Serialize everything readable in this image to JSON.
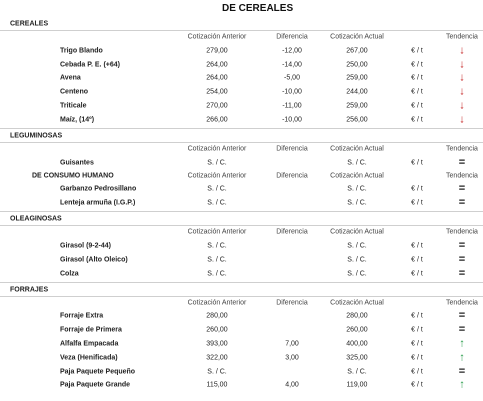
{
  "title": "DE CEREALES",
  "columns": [
    "Cotización Anterior",
    "Diferencia",
    "Cotización Actual",
    "Tendencia"
  ],
  "trend_colors": {
    "↓": "#c62828",
    "↑": "#2e9e4f",
    "=": "#222222"
  },
  "blocks": [
    {
      "title": "CEREALES",
      "rows": [
        [
          "Trigo Blando",
          "279,00",
          "-12,00",
          "267,00",
          "€ / t",
          "↓"
        ],
        [
          "Cebada P. E. (+64)",
          "264,00",
          "-14,00",
          "250,00",
          "€ / t",
          "↓"
        ],
        [
          "Avena",
          "264,00",
          "-5,00",
          "259,00",
          "€ / t",
          "↓"
        ],
        [
          "Centeno",
          "254,00",
          "-10,00",
          "244,00",
          "€ / t",
          "↓"
        ],
        [
          "Triticale",
          "270,00",
          "-11,00",
          "259,00",
          "€ / t",
          "↓"
        ],
        [
          "Maíz, (14º)",
          "266,00",
          "-10,00",
          "256,00",
          "€ / t",
          "↓"
        ]
      ]
    },
    {
      "title": "LEGUMINOSAS",
      "rows": [
        [
          "Guisantes",
          "S. / C.",
          null,
          "S. / C.",
          "€ / t",
          "="
        ]
      ]
    },
    {
      "label": "DE CONSUMO HUMANO",
      "rows": [
        [
          "Garbanzo Pedrosillano",
          "S. / C.",
          null,
          "S. / C.",
          "€ / t",
          "="
        ],
        [
          "Lenteja armuña (I.G.P.)",
          "S. / C.",
          null,
          "S. / C.",
          "€ / t",
          "="
        ]
      ]
    },
    {
      "title": "OLEAGINOSAS",
      "rows": [
        [
          "Girasol (9-2-44)",
          "S. / C.",
          null,
          "S. / C.",
          "€ / t",
          "="
        ],
        [
          "Girasol (Alto Oleico)",
          "S. / C.",
          null,
          "S. / C.",
          "€ / t",
          "="
        ],
        [
          "Colza",
          "S. / C.",
          null,
          "S. / C.",
          "€ / t",
          "="
        ]
      ]
    },
    {
      "title": "FORRAJES",
      "rows": [
        [
          "Forraje Extra",
          "280,00",
          null,
          "280,00",
          "€ / t",
          "="
        ],
        [
          "Forraje de Primera",
          "260,00",
          null,
          "260,00",
          "€ / t",
          "="
        ],
        [
          "Alfalfa Empacada",
          "393,00",
          "7,00",
          "400,00",
          "€ / t",
          "↑"
        ],
        [
          "Veza (Henificada)",
          "322,00",
          "3,00",
          "325,00",
          "€ / t",
          "↑"
        ],
        [
          "Paja Paquete Pequeño",
          "S. / C.",
          null,
          "S. / C.",
          "€ / t",
          "="
        ],
        [
          "Paja Paquete Grande",
          "115,00",
          "4,00",
          "119,00",
          "€ / t",
          "↑"
        ]
      ]
    }
  ]
}
